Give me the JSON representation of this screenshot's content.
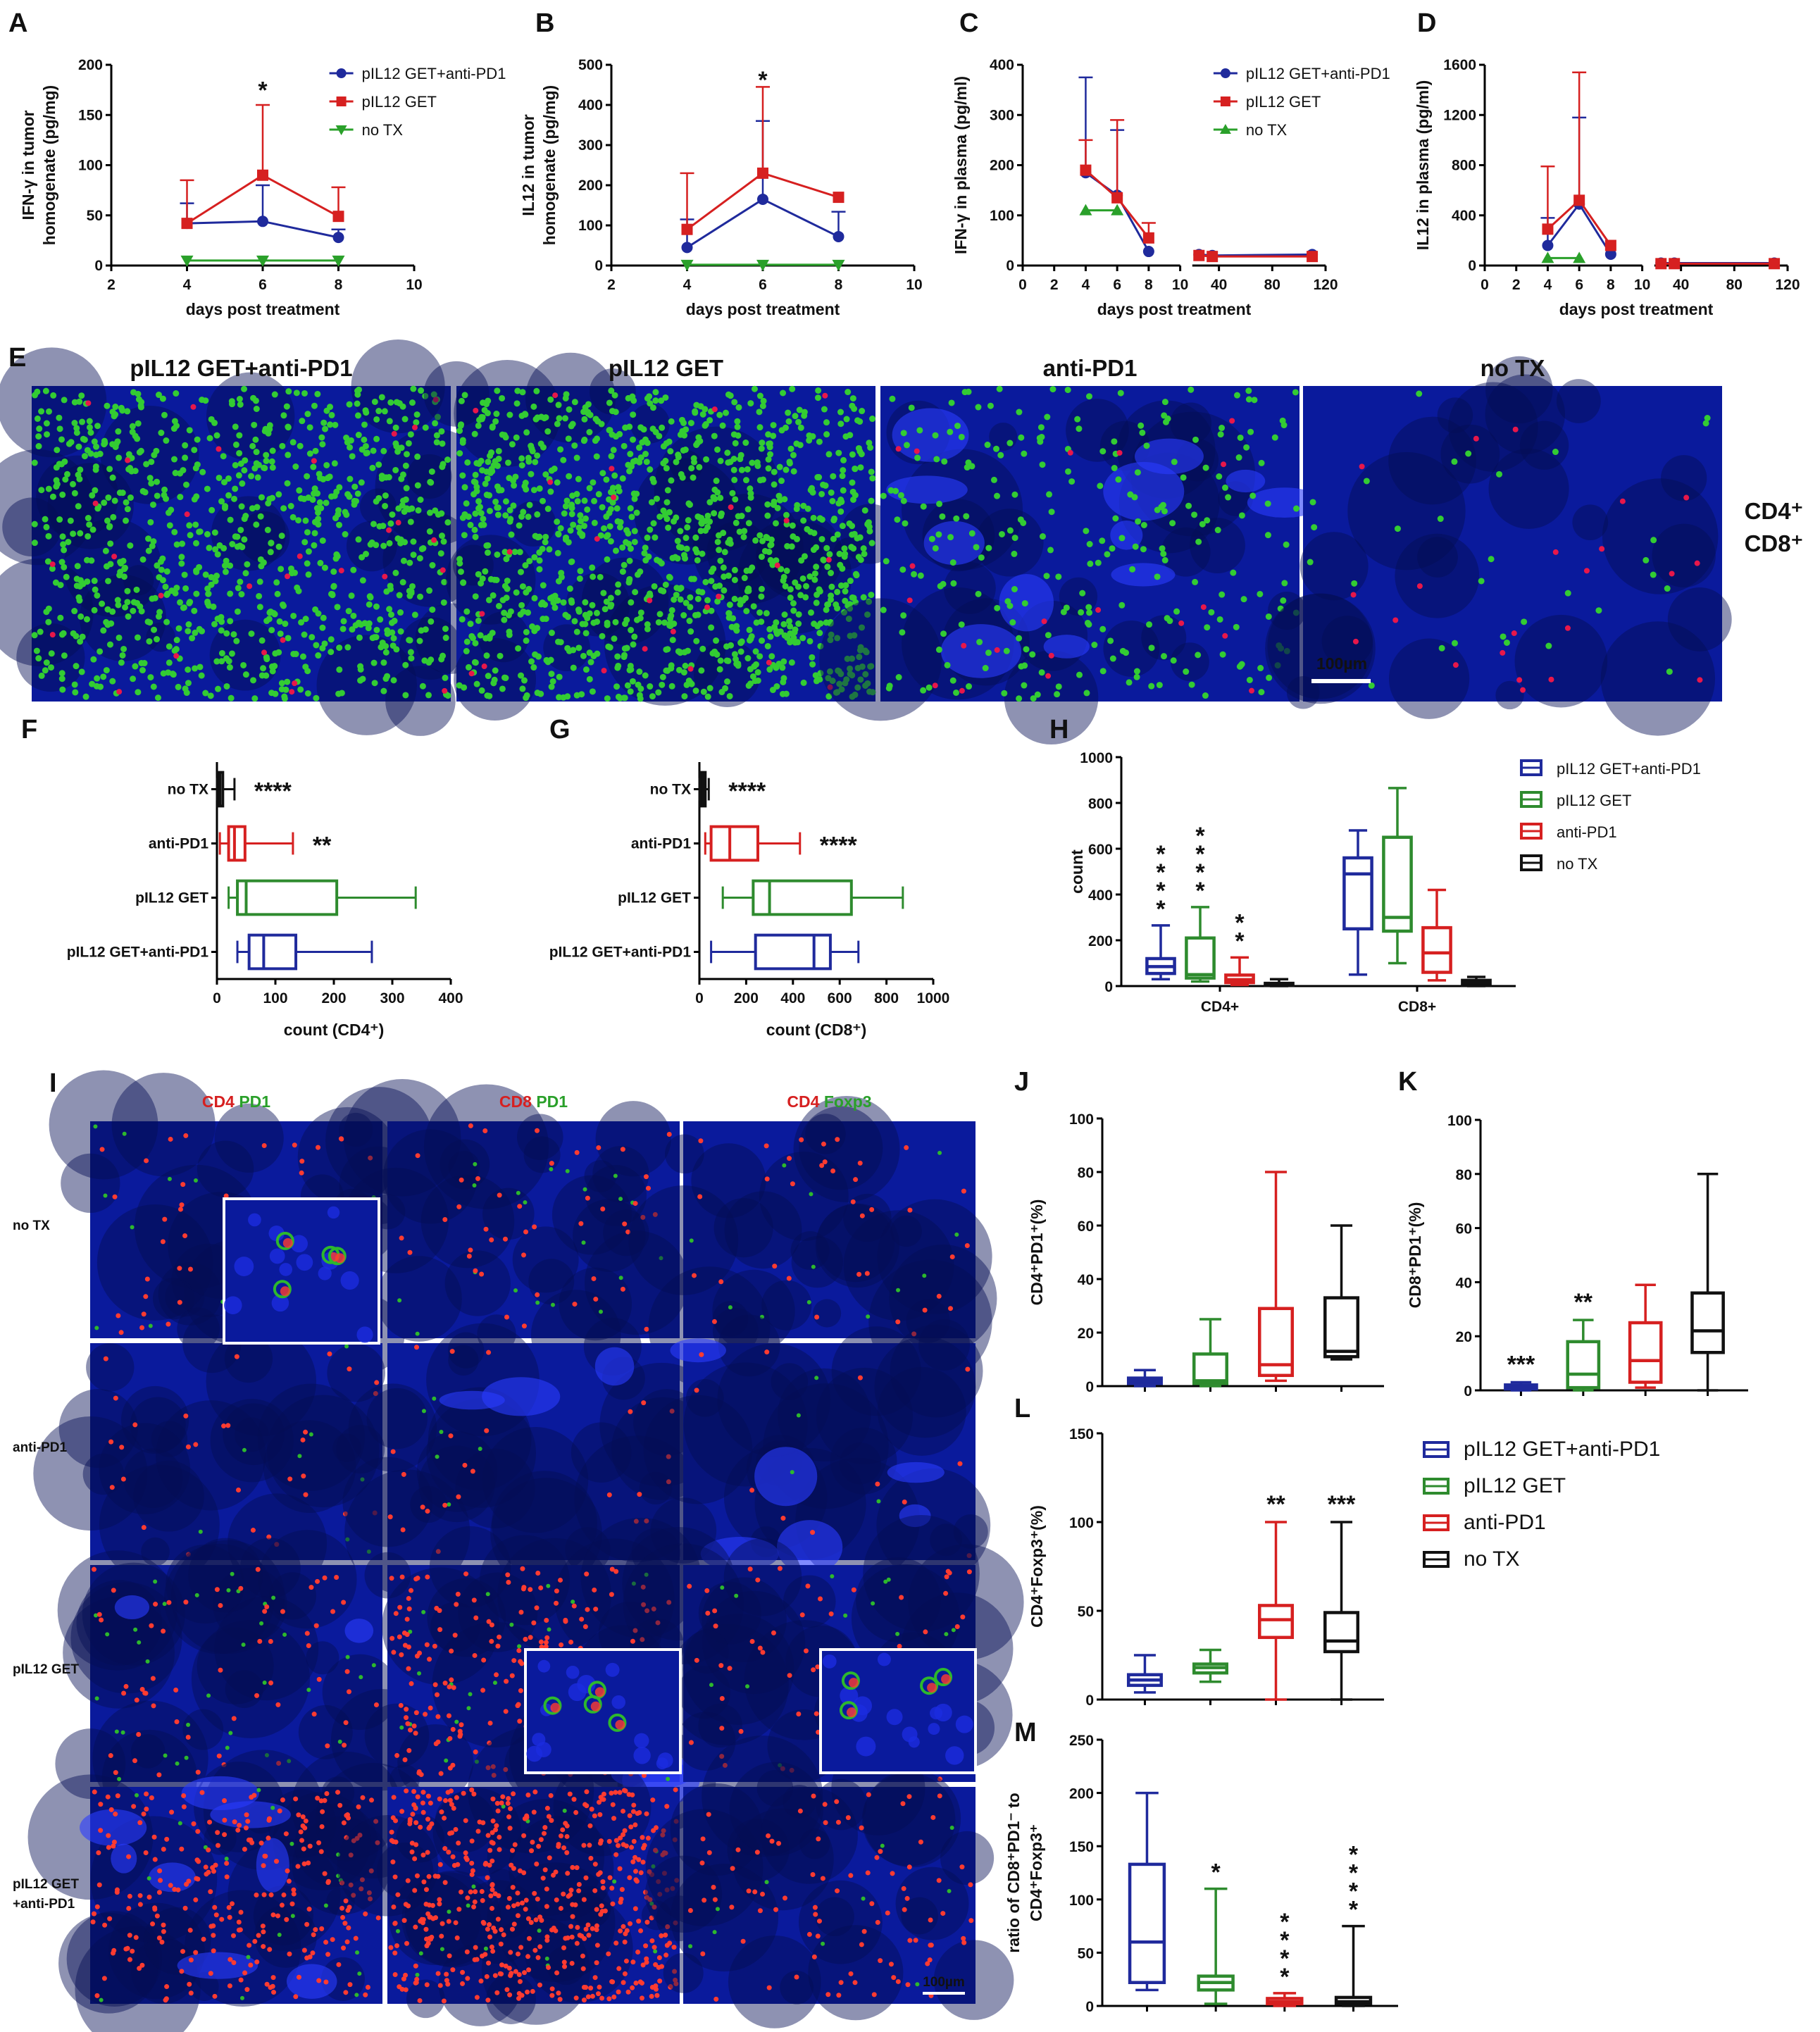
{
  "colors": {
    "combo": "#1f2a9c",
    "get": "#2e8b2e",
    "antipd1": "#d62020",
    "notx": "#111111",
    "red_series": "#d62020",
    "green_series": "#2aa02a",
    "cd4_stain": "#e8174a",
    "cd8_stain": "#33cc33",
    "pd1_stain": "#2db82d",
    "foxp3_stain": "#2db82d",
    "tissue": "#0a1a9c"
  },
  "panels": {
    "A": "A",
    "B": "B",
    "C": "C",
    "D": "D",
    "E": "E",
    "F": "F",
    "G": "G",
    "H": "H",
    "I": "I",
    "J": "J",
    "K": "K",
    "L": "L",
    "M": "M"
  },
  "legend_lines": [
    "pIL12 GET+anti-PD1",
    "pIL12 GET",
    "no TX"
  ],
  "legend_box": [
    "pIL12 GET+anti-PD1",
    "pIL12 GET",
    "anti-PD1",
    "no TX"
  ],
  "panel_e": {
    "titles": [
      "pIL12 GET+anti-PD1",
      "pIL12 GET",
      "anti-PD1",
      "no TX"
    ],
    "stain_cd4": "CD4⁺",
    "stain_cd8": "CD8⁺",
    "scale_bar": "100µm"
  },
  "panel_i": {
    "col_headers": [
      {
        "a": "CD4",
        "b": "PD1"
      },
      {
        "a": "CD8",
        "b": "PD1"
      },
      {
        "a": "CD4",
        "b": "Foxp3"
      }
    ],
    "row_labels": [
      "no TX",
      "anti-PD1",
      "pIL12 GET",
      "pIL12 GET\n+anti-PD1"
    ],
    "scale_bar": "100µm"
  },
  "chart_data": [
    {
      "id": "A",
      "type": "line",
      "xlabel": "days post treatment",
      "ylabel": [
        "IFN-γ in tumor",
        "homogenate (pg/mg)"
      ],
      "xlim": [
        2,
        10
      ],
      "xticks": [
        2,
        4,
        6,
        8,
        10
      ],
      "ylim": [
        0,
        200
      ],
      "yticks": [
        0,
        50,
        100,
        150,
        200
      ],
      "annotations": [
        {
          "x": 6,
          "y": 178,
          "text": "*"
        }
      ],
      "series": [
        {
          "name": "pIL12 GET+anti-PD1",
          "x": [
            4,
            6,
            8
          ],
          "y": [
            42,
            44,
            28
          ],
          "err": [
            20,
            36,
            8
          ],
          "marker": "circle"
        },
        {
          "name": "pIL12 GET",
          "x": [
            4,
            6,
            8
          ],
          "y": [
            42,
            90,
            49
          ],
          "err": [
            43,
            70,
            29
          ],
          "marker": "square"
        },
        {
          "name": "no TX",
          "x": [
            4,
            6,
            8
          ],
          "y": [
            5,
            5,
            5
          ],
          "err": [
            0,
            0,
            0
          ],
          "marker": "triangle-down"
        }
      ]
    },
    {
      "id": "B",
      "type": "line",
      "xlabel": "days post treatment",
      "ylabel": [
        "IL12 in tumor",
        "homogenate (pg/mg)"
      ],
      "xlim": [
        2,
        10
      ],
      "xticks": [
        2,
        4,
        6,
        8,
        10
      ],
      "ylim": [
        0,
        500
      ],
      "yticks": [
        0,
        100,
        200,
        300,
        400,
        500
      ],
      "annotations": [
        {
          "x": 6,
          "y": 470,
          "text": "*"
        }
      ],
      "series": [
        {
          "name": "pIL12 GET+anti-PD1",
          "x": [
            4,
            6,
            8
          ],
          "y": [
            45,
            165,
            72
          ],
          "err": [
            70,
            195,
            62
          ],
          "marker": "circle"
        },
        {
          "name": "pIL12 GET",
          "x": [
            4,
            6,
            8
          ],
          "y": [
            90,
            230,
            170
          ],
          "err": [
            140,
            215,
            0
          ],
          "marker": "square"
        },
        {
          "name": "no TX",
          "x": [
            4,
            6,
            8
          ],
          "y": [
            2,
            2,
            2
          ],
          "err": [
            0,
            0,
            0
          ],
          "marker": "triangle-down"
        }
      ]
    },
    {
      "id": "C",
      "type": "line",
      "xlabel": "days post treatment",
      "ylabel": [
        "IFN-γ in plasma (pg/ml)"
      ],
      "xlim": [
        0,
        120
      ],
      "break": [
        10,
        20
      ],
      "xticks": [
        0,
        2,
        4,
        6,
        8,
        10,
        40,
        80,
        120
      ],
      "ylim": [
        0,
        400
      ],
      "yticks": [
        0,
        100,
        200,
        300,
        400
      ],
      "series": [
        {
          "name": "pIL12 GET+anti-PD1",
          "x": [
            4,
            6,
            8,
            25,
            35,
            110
          ],
          "y": [
            185,
            140,
            28,
            22,
            20,
            22
          ],
          "err": [
            190,
            130,
            0,
            0,
            0,
            0
          ],
          "marker": "circle"
        },
        {
          "name": "pIL12 GET",
          "x": [
            4,
            6,
            8,
            25,
            35,
            110
          ],
          "y": [
            190,
            135,
            55,
            20,
            18,
            18
          ],
          "err": [
            60,
            155,
            30,
            0,
            0,
            0
          ],
          "marker": "square"
        },
        {
          "name": "no TX",
          "x": [
            4,
            6
          ],
          "y": [
            110,
            110
          ],
          "err": [
            0,
            0
          ],
          "marker": "triangle-up"
        }
      ]
    },
    {
      "id": "D",
      "type": "line",
      "xlabel": "days post treatment",
      "ylabel": [
        "IL12 in plasma (pg/ml)"
      ],
      "xlim": [
        0,
        120
      ],
      "break": [
        10,
        20
      ],
      "xticks": [
        0,
        2,
        4,
        6,
        8,
        10,
        40,
        80,
        120
      ],
      "ylim": [
        0,
        1600
      ],
      "yticks": [
        0,
        400,
        800,
        1200,
        1600
      ],
      "series": [
        {
          "name": "pIL12 GET+anti-PD1",
          "x": [
            4,
            6,
            8,
            25,
            35,
            110
          ],
          "y": [
            160,
            490,
            90,
            20,
            20,
            20
          ],
          "err": [
            220,
            690,
            0,
            0,
            0,
            0
          ],
          "marker": "circle"
        },
        {
          "name": "pIL12 GET",
          "x": [
            4,
            6,
            8,
            25,
            35,
            110
          ],
          "y": [
            290,
            520,
            160,
            15,
            15,
            15
          ],
          "err": [
            500,
            1020,
            0,
            0,
            0,
            0
          ],
          "marker": "square"
        },
        {
          "name": "no TX",
          "x": [
            4,
            6
          ],
          "y": [
            60,
            60
          ],
          "err": [
            0,
            0
          ],
          "marker": "triangle-up"
        }
      ]
    },
    {
      "id": "F",
      "type": "box",
      "orientation": "horizontal",
      "xlabel": "count (CD4⁺)",
      "xlim": [
        0,
        400
      ],
      "xticks": [
        0,
        100,
        200,
        300,
        400
      ],
      "groups": [
        {
          "name": "no TX",
          "min": 0,
          "q1": 2,
          "median": 5,
          "q3": 10,
          "max": 30,
          "sig": "****"
        },
        {
          "name": "anti-PD1",
          "min": 5,
          "q1": 20,
          "median": 30,
          "q3": 48,
          "max": 130,
          "sig": "**"
        },
        {
          "name": "pIL12 GET",
          "min": 20,
          "q1": 35,
          "median": 50,
          "q3": 205,
          "max": 340,
          "sig": ""
        },
        {
          "name": "pIL12 GET+anti-PD1",
          "min": 35,
          "q1": 55,
          "median": 80,
          "q3": 135,
          "max": 265,
          "sig": ""
        }
      ]
    },
    {
      "id": "G",
      "type": "box",
      "orientation": "horizontal",
      "xlabel": "count (CD8⁺)",
      "xlim": [
        0,
        1000
      ],
      "xticks": [
        0,
        200,
        400,
        600,
        800,
        1000
      ],
      "groups": [
        {
          "name": "no TX",
          "min": 0,
          "q1": 5,
          "median": 15,
          "q3": 25,
          "max": 40,
          "sig": "****"
        },
        {
          "name": "anti-PD1",
          "min": 25,
          "q1": 50,
          "median": 130,
          "q3": 250,
          "max": 430,
          "sig": "****"
        },
        {
          "name": "pIL12 GET",
          "min": 100,
          "q1": 230,
          "median": 300,
          "q3": 650,
          "max": 870,
          "sig": ""
        },
        {
          "name": "pIL12 GET+anti-PD1",
          "min": 50,
          "q1": 240,
          "median": 490,
          "q3": 560,
          "max": 680,
          "sig": ""
        }
      ]
    },
    {
      "id": "H",
      "type": "box",
      "ylabel": "count",
      "ylim": [
        0,
        1000
      ],
      "yticks": [
        0,
        200,
        400,
        600,
        800,
        1000
      ],
      "categories": [
        "CD4+",
        "CD8+"
      ],
      "series": [
        {
          "name": "pIL12 GET+anti-PD1",
          "boxes": [
            {
              "min": 30,
              "q1": 55,
              "median": 85,
              "q3": 120,
              "max": 265,
              "sig": "****"
            },
            {
              "min": 50,
              "q1": 250,
              "median": 490,
              "q3": 560,
              "max": 680,
              "sig": ""
            }
          ]
        },
        {
          "name": "pIL12 GET",
          "boxes": [
            {
              "min": 20,
              "q1": 35,
              "median": 50,
              "q3": 210,
              "max": 345,
              "sig": "****"
            },
            {
              "min": 100,
              "q1": 240,
              "median": 300,
              "q3": 650,
              "max": 865,
              "sig": ""
            }
          ]
        },
        {
          "name": "anti-PD1",
          "boxes": [
            {
              "min": 5,
              "q1": 15,
              "median": 28,
              "q3": 48,
              "max": 125,
              "sig": "**"
            },
            {
              "min": 25,
              "q1": 60,
              "median": 145,
              "q3": 255,
              "max": 420,
              "sig": ""
            }
          ]
        },
        {
          "name": "no TX",
          "boxes": [
            {
              "min": 0,
              "q1": 3,
              "median": 6,
              "q3": 12,
              "max": 30,
              "sig": ""
            },
            {
              "min": 0,
              "q1": 5,
              "median": 15,
              "q3": 25,
              "max": 40,
              "sig": ""
            }
          ]
        }
      ]
    },
    {
      "id": "J",
      "type": "box",
      "ylabel": "CD4⁺PD1⁺(%)",
      "ylim": [
        0,
        100
      ],
      "yticks": [
        0,
        20,
        40,
        60,
        80,
        100
      ],
      "groups": [
        {
          "name": "pIL12 GET+anti-PD1",
          "min": 0,
          "q1": 1,
          "median": 2,
          "q3": 3,
          "max": 6,
          "sig": ""
        },
        {
          "name": "pIL12 GET",
          "min": 0,
          "q1": 1,
          "median": 2,
          "q3": 12,
          "max": 25,
          "sig": ""
        },
        {
          "name": "anti-PD1",
          "min": 2,
          "q1": 4,
          "median": 8,
          "q3": 29,
          "max": 80,
          "sig": ""
        },
        {
          "name": "no TX",
          "min": 10,
          "q1": 11,
          "median": 13,
          "q3": 33,
          "max": 60,
          "sig": ""
        }
      ]
    },
    {
      "id": "K",
      "type": "box",
      "ylabel": "CD8⁺PD1⁺(%)",
      "ylim": [
        0,
        100
      ],
      "yticks": [
        0,
        20,
        40,
        60,
        80,
        100
      ],
      "groups": [
        {
          "name": "pIL12 GET+anti-PD1",
          "min": 0,
          "q1": 0.5,
          "median": 1,
          "q3": 2,
          "max": 3,
          "sig": "***"
        },
        {
          "name": "pIL12 GET",
          "min": 0,
          "q1": 1,
          "median": 6,
          "q3": 18,
          "max": 26,
          "sig": "**"
        },
        {
          "name": "anti-PD1",
          "min": 1,
          "q1": 3,
          "median": 11,
          "q3": 25,
          "max": 39,
          "sig": ""
        },
        {
          "name": "no TX",
          "min": 0,
          "q1": 14,
          "median": 22,
          "q3": 36,
          "max": 80,
          "sig": ""
        }
      ]
    },
    {
      "id": "L",
      "type": "box",
      "ylabel": "CD4⁺Foxp3⁺(%)",
      "ylim": [
        0,
        150
      ],
      "yticks": [
        0,
        50,
        100,
        150
      ],
      "groups": [
        {
          "name": "pIL12 GET+anti-PD1",
          "min": 4,
          "q1": 8,
          "median": 11,
          "q3": 14,
          "max": 25,
          "sig": ""
        },
        {
          "name": "pIL12 GET",
          "min": 10,
          "q1": 15,
          "median": 18,
          "q3": 20,
          "max": 28,
          "sig": ""
        },
        {
          "name": "anti-PD1",
          "min": 0,
          "q1": 35,
          "median": 45,
          "q3": 53,
          "max": 100,
          "sig": "**"
        },
        {
          "name": "no TX",
          "min": 0,
          "q1": 27,
          "median": 33,
          "q3": 49,
          "max": 100,
          "sig": "***"
        }
      ]
    },
    {
      "id": "M",
      "type": "box",
      "ylabel": [
        "ratio of CD8⁺PD1⁻ to",
        "CD4⁺Foxp3⁺"
      ],
      "ylim": [
        0,
        250
      ],
      "yticks": [
        0,
        50,
        100,
        150,
        200,
        250
      ],
      "groups": [
        {
          "name": "pIL12 GET+anti-PD1",
          "min": 15,
          "q1": 22,
          "median": 60,
          "q3": 133,
          "max": 200,
          "sig": ""
        },
        {
          "name": "pIL12 GET",
          "min": 2,
          "q1": 15,
          "median": 22,
          "q3": 28,
          "max": 110,
          "sig": "*"
        },
        {
          "name": "anti-PD1",
          "min": 0,
          "q1": 2,
          "median": 4,
          "q3": 7,
          "max": 12,
          "sig": "****"
        },
        {
          "name": "no TX",
          "min": 0,
          "q1": 2,
          "median": 4,
          "q3": 8,
          "max": 75,
          "sig": "****"
        }
      ]
    }
  ]
}
